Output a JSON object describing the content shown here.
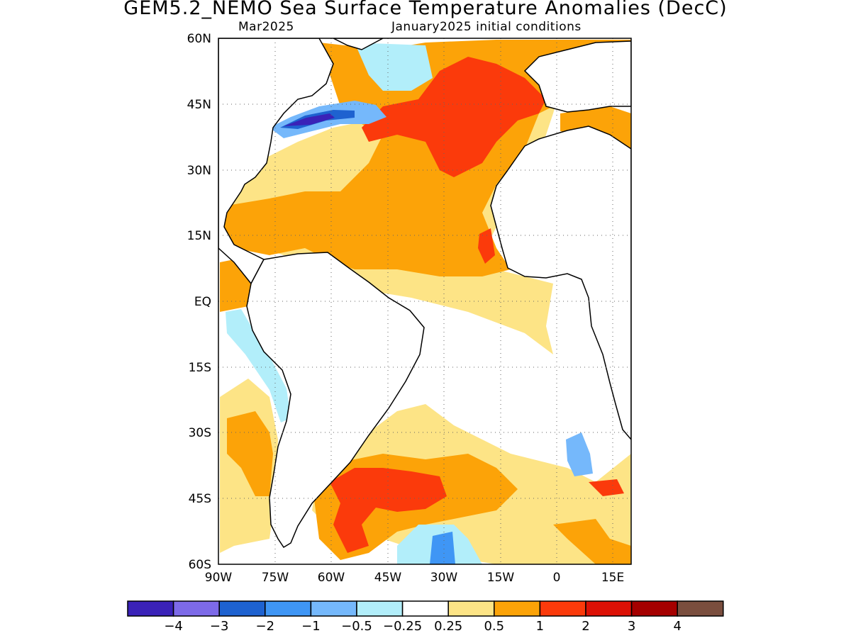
{
  "title": "GEM5.2_NEMO Sea Surface Temperature Anomalies (DecC)",
  "subtitle_left": "Mar2025",
  "subtitle_right": "January2025 initial conditions",
  "lat_ticks": [
    "60N",
    "45N",
    "30N",
    "15N",
    "EQ",
    "15S",
    "30S",
    "45S",
    "60S"
  ],
  "lon_ticks": [
    "90W",
    "75W",
    "60W",
    "45W",
    "30W",
    "15W",
    "0",
    "15E"
  ],
  "colorbar": {
    "colors": [
      "#3a22b8",
      "#7d6ae8",
      "#1e62d0",
      "#3f96f5",
      "#75b8fb",
      "#b2eefa",
      "#ffffff",
      "#fde486",
      "#fca308",
      "#fb3a0b",
      "#dc1105",
      "#a50000",
      "#7a4e3e"
    ],
    "labels": [
      "−4",
      "−3",
      "−2",
      "−1",
      "−0.5",
      "−0.25",
      "0.25",
      "0.5",
      "1",
      "2",
      "3",
      "4"
    ]
  },
  "map": {
    "region": "Atlantic Ocean",
    "lat_range": [
      -60,
      60
    ],
    "lon_range": [
      -90,
      20
    ],
    "grid": "dotted",
    "anomaly_units": "DecC"
  }
}
